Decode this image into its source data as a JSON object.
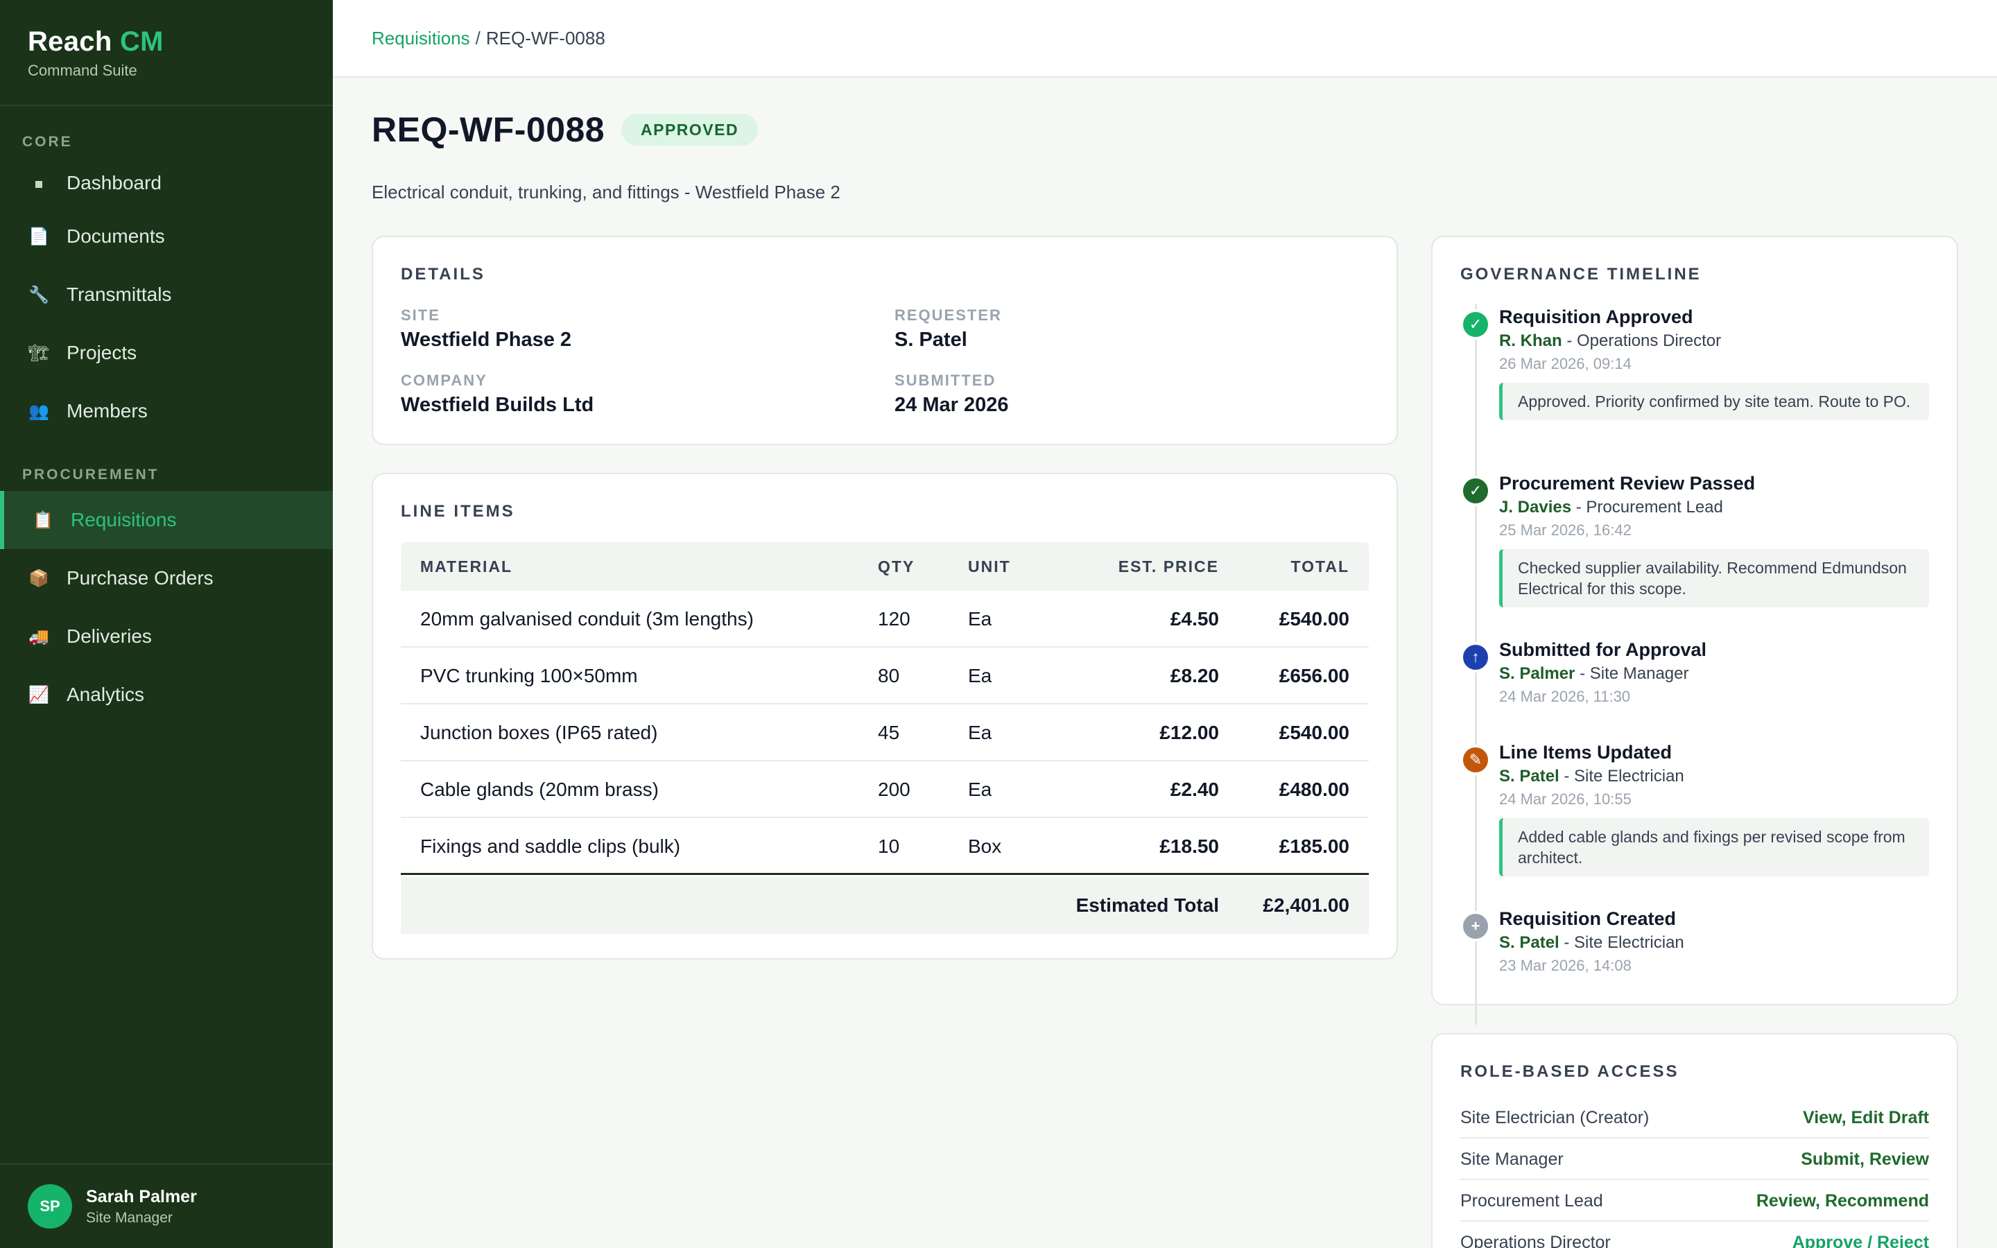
{
  "brand": {
    "name": "Reach",
    "accent": "CM",
    "subtitle": "Command Suite"
  },
  "nav": {
    "sections": [
      {
        "label": "CORE",
        "items": [
          {
            "label": "Dashboard",
            "icon": "square-bullet-icon"
          },
          {
            "label": "Documents",
            "icon": "document-icon"
          },
          {
            "label": "Transmittals",
            "icon": "wrench-icon"
          },
          {
            "label": "Projects",
            "icon": "crane-icon"
          },
          {
            "label": "Members",
            "icon": "people-icon"
          }
        ]
      },
      {
        "label": "PROCUREMENT",
        "items": [
          {
            "label": "Requisitions",
            "icon": "clipboard-icon",
            "active": true
          },
          {
            "label": "Purchase Orders",
            "icon": "package-icon"
          },
          {
            "label": "Deliveries",
            "icon": "truck-icon"
          },
          {
            "label": "Analytics",
            "icon": "chart-icon"
          }
        ]
      }
    ]
  },
  "user": {
    "initials": "SP",
    "name": "Sarah Palmer",
    "role": "Site Manager"
  },
  "breadcrumb": {
    "parent": "Requisitions",
    "separator": "/",
    "current": "REQ-WF-0088"
  },
  "header": {
    "title": "REQ-WF-0088",
    "status": "APPROVED",
    "description": "Electrical conduit, trunking, and fittings - Westfield Phase 2"
  },
  "details": {
    "title": "DETAILS",
    "site_label": "SITE",
    "site": "Westfield Phase 2",
    "requester_label": "REQUESTER",
    "requester": "S. Patel",
    "company_label": "COMPANY",
    "company": "Westfield Builds Ltd",
    "submitted_label": "SUBMITTED",
    "submitted": "24 Mar 2026"
  },
  "line_items": {
    "title": "LINE ITEMS",
    "columns": [
      "MATERIAL",
      "QTY",
      "UNIT",
      "EST. PRICE",
      "TOTAL"
    ],
    "rows": [
      [
        "20mm galvanised conduit (3m lengths)",
        "120",
        "Ea",
        "£4.50",
        "£540.00"
      ],
      [
        "PVC trunking 100×50mm",
        "80",
        "Ea",
        "£8.20",
        "£656.00"
      ],
      [
        "Junction boxes (IP65 rated)",
        "45",
        "Ea",
        "£12.00",
        "£540.00"
      ],
      [
        "Cable glands (20mm brass)",
        "200",
        "Ea",
        "£2.40",
        "£480.00"
      ],
      [
        "Fixings and saddle clips (bulk)",
        "10",
        "Box",
        "£18.50",
        "£185.00"
      ]
    ],
    "total_label": "Estimated Total",
    "total_value": "£2,401.00"
  },
  "timeline": {
    "title": "GOVERNANCE TIMELINE",
    "events": [
      {
        "title": "Requisition Approved",
        "person": "R. Khan",
        "role": "Operations Director",
        "time": "26 Mar 2026, 09:14",
        "note": "Approved. Priority confirmed by site team. Route to PO.",
        "icon": "check-icon",
        "color": "#16b36a"
      },
      {
        "title": "Procurement Review Passed",
        "person": "J. Davies",
        "role": "Procurement Lead",
        "time": "25 Mar 2026, 16:42",
        "note": "Checked supplier availability. Recommend Edmundson Electrical for this scope.",
        "icon": "check-icon",
        "color": "#1f6a2d"
      },
      {
        "title": "Submitted for Approval",
        "person": "S. Palmer",
        "role": "Site Manager",
        "time": "24 Mar 2026, 11:30",
        "note": "",
        "icon": "arrow-up-icon",
        "color": "#1e40af"
      },
      {
        "title": "Line Items Updated",
        "person": "S. Patel",
        "role": "Site Electrician",
        "time": "24 Mar 2026, 10:55",
        "note": "Added cable glands and fixings per revised scope from architect.",
        "icon": "pencil-icon",
        "color": "#c2570c"
      },
      {
        "title": "Requisition Created",
        "person": "S. Patel",
        "role": "Site Electrician",
        "time": "23 Mar 2026, 14:08",
        "note": "",
        "icon": "plus-icon",
        "color": "#9aa3ad"
      }
    ]
  },
  "access": {
    "title": "ROLE-BASED ACCESS",
    "rows": [
      {
        "role": "Site Electrician (Creator)",
        "perm": "View, Edit Draft"
      },
      {
        "role": "Site Manager",
        "perm": "Submit, Review"
      },
      {
        "role": "Procurement Lead",
        "perm": "Review, Recommend"
      },
      {
        "role": "Operations Director",
        "perm": "Approve / Reject"
      }
    ]
  }
}
